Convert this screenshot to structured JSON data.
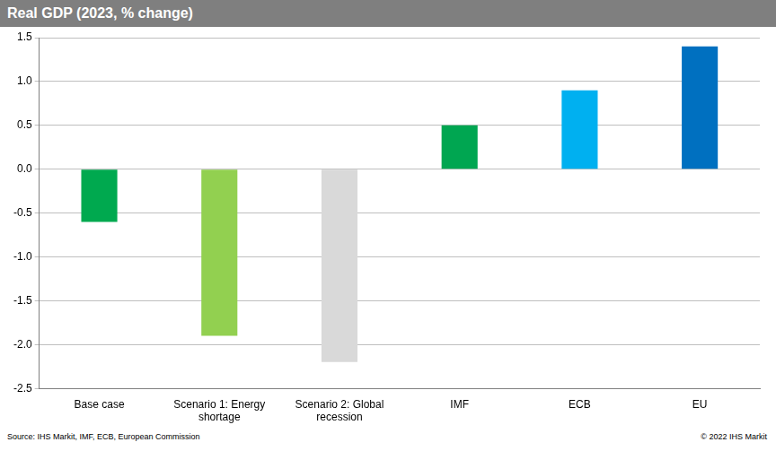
{
  "chart_data": {
    "type": "bar",
    "title": "Real GDP (2023, % change)",
    "categories": [
      "Base case",
      "Scenario 1: Energy shortage",
      "Scenario 2: Global recession",
      "IMF",
      "ECB",
      "EU"
    ],
    "values": [
      -0.6,
      -1.9,
      -2.2,
      0.5,
      0.9,
      1.4
    ],
    "colors": [
      "#00a94f",
      "#92d050",
      "#d9d9d9",
      "#00a651",
      "#00b0f0",
      "#0070c0"
    ],
    "ylim": [
      -2.5,
      1.5
    ],
    "yticks": [
      -2.5,
      {
        "value": -2,
        "label": "-2.0"
      },
      -1.5,
      {
        "value": -1,
        "label": "-1.0"
      },
      -0.5,
      {
        "value": 0,
        "label": "0.0"
      },
      0.5,
      {
        "value": 1,
        "label": "1.0"
      },
      1.5
    ],
    "grid": true,
    "legend": false,
    "data_labels": false,
    "source": "Source: IHS Markit, IMF, ECB, European Commission",
    "copyright": "© 2022 IHS Markit"
  }
}
